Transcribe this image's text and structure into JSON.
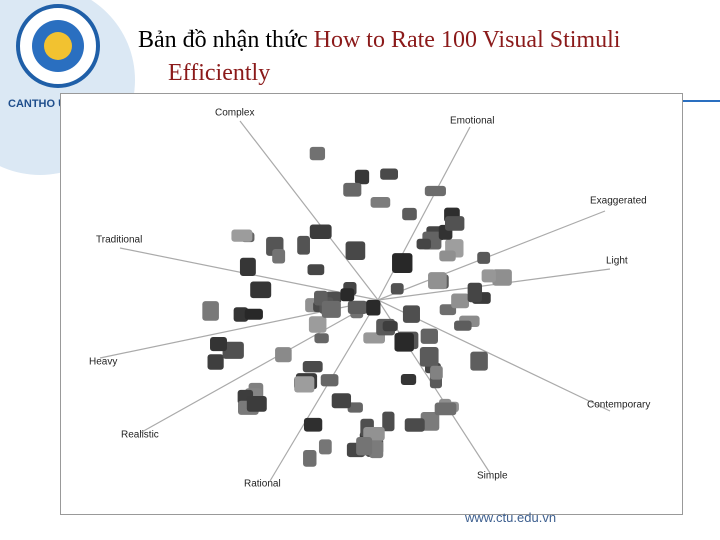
{
  "header": {
    "title": "Bản đồ nhận thức",
    "title_highlight": "How to Rate 100 Visual Stimuli Efficiently"
  },
  "logo": {
    "text": "CANTHO U"
  },
  "map": {
    "labels": [
      "Complex",
      "Emotional",
      "Exaggerated",
      "Light",
      "Contemporary",
      "Simple",
      "Rational",
      "Realistic",
      "Heavy",
      "Traditional"
    ]
  },
  "footer": {
    "url": "www.ctu.edu.vn"
  }
}
